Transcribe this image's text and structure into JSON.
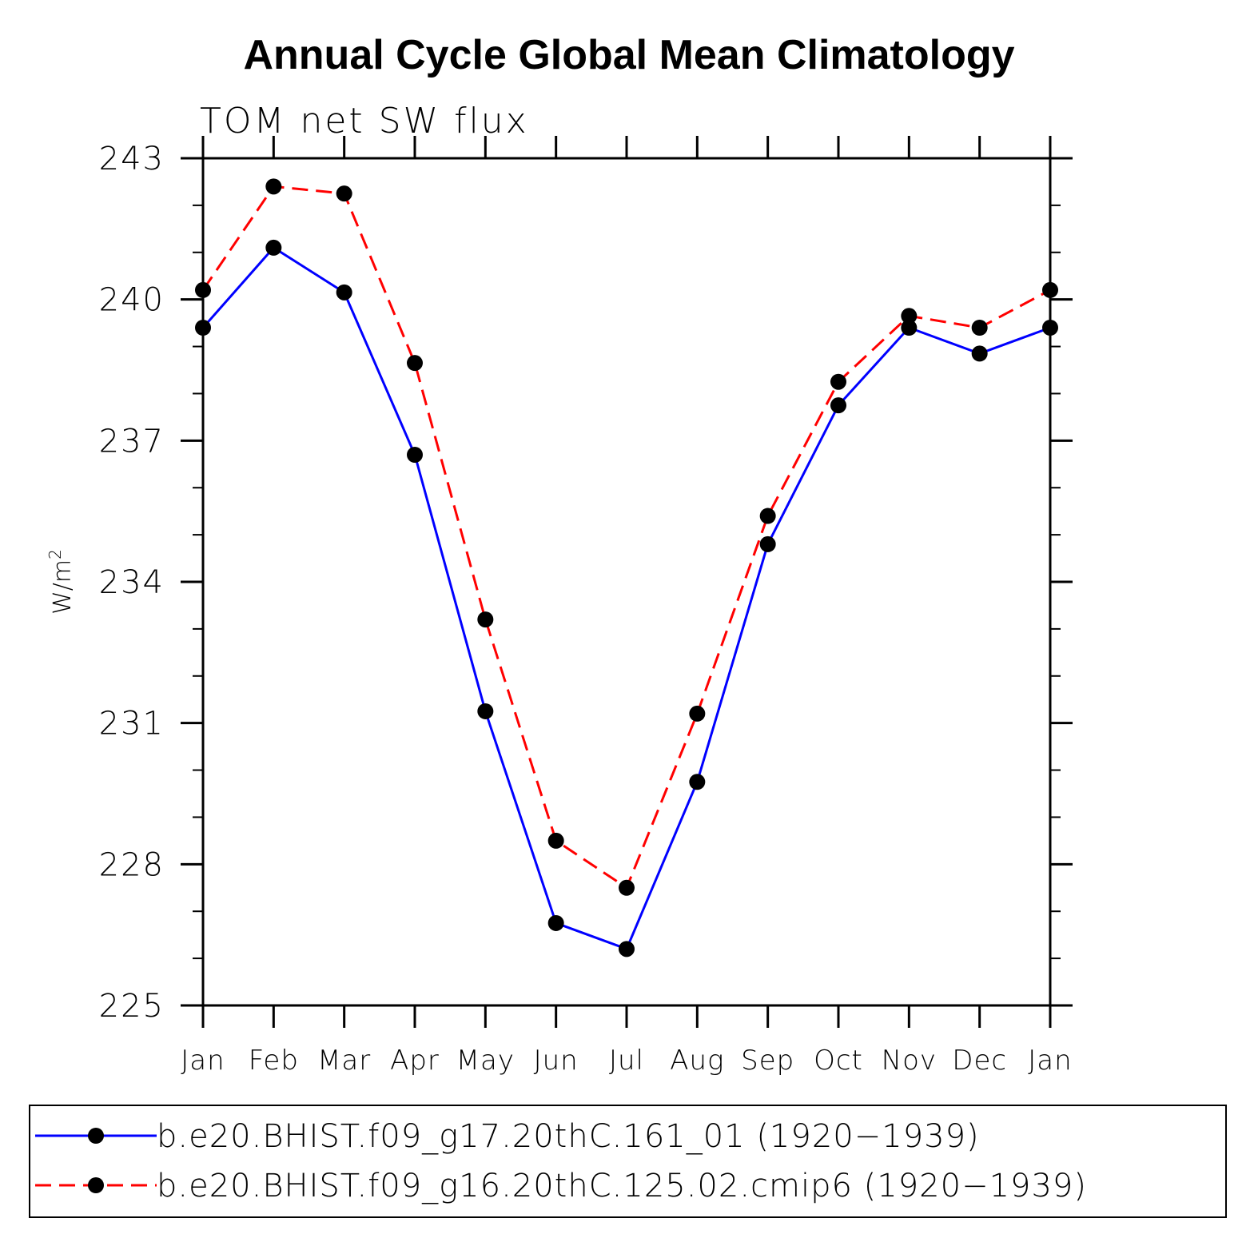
{
  "chart_data": {
    "type": "line",
    "title": "Annual Cycle Global Mean Climatology",
    "subtitle": "TOM net SW flux",
    "ylabel": "W/m",
    "ylabel_sup": "2",
    "xlabel": "",
    "categories": [
      "Jan",
      "Feb",
      "Mar",
      "Apr",
      "May",
      "Jun",
      "Jul",
      "Aug",
      "Sep",
      "Oct",
      "Nov",
      "Dec",
      "Jan"
    ],
    "ylim": [
      225,
      243
    ],
    "yticks": [
      225,
      228,
      231,
      234,
      237,
      240,
      243
    ],
    "yminor_step": 1,
    "series": [
      {
        "name": "b.e20.BHIST.f09_g17.20thC.161_01 (1920−1939)",
        "color": "#0000ff",
        "dash": "solid",
        "marker": "circle",
        "values": [
          239.4,
          241.1,
          240.15,
          236.7,
          231.25,
          226.75,
          226.2,
          229.75,
          234.8,
          237.75,
          239.4,
          238.85,
          239.4
        ]
      },
      {
        "name": "b.e20.BHIST.f09_g16.20thC.125.02.cmip6 (1920−1939)",
        "color": "#ff0000",
        "dash": "dashed",
        "marker": "circle",
        "values": [
          240.2,
          242.4,
          242.25,
          238.65,
          233.2,
          228.5,
          227.5,
          231.2,
          235.4,
          238.25,
          239.65,
          239.4,
          240.2
        ]
      }
    ],
    "legend_position": "bottom"
  }
}
